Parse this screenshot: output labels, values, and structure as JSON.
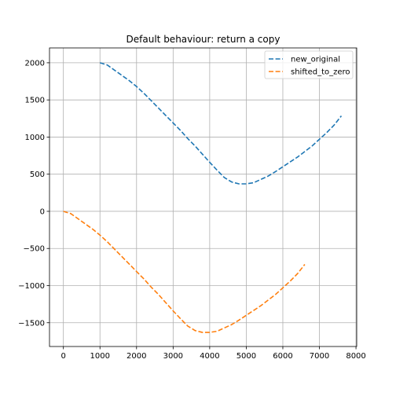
{
  "chart_data": {
    "type": "line",
    "title": "Default behaviour: return a copy",
    "xlabel": "",
    "ylabel": "",
    "xlim": [
      -380,
      8020
    ],
    "ylim": [
      -1820,
      2200
    ],
    "xticks": [
      0,
      1000,
      2000,
      3000,
      4000,
      5000,
      6000,
      7000,
      8000
    ],
    "yticks": [
      -1500,
      -1000,
      -500,
      0,
      500,
      1000,
      1500,
      2000
    ],
    "xtick_labels": [
      "0",
      "1000",
      "2000",
      "3000",
      "4000",
      "5000",
      "6000",
      "7000",
      "8000"
    ],
    "ytick_labels": [
      "−1500",
      "−1000",
      "−500",
      "0",
      "500",
      "1000",
      "1500",
      "2000"
    ],
    "grid": true,
    "legend_position": "top-right",
    "series": [
      {
        "name": "new_original",
        "color": "#1f77b4",
        "line_style": "dashed",
        "x": [
          1000,
          1200,
          1400,
          1600,
          1800,
          2000,
          2200,
          2400,
          2600,
          2800,
          3000,
          3200,
          3400,
          3600,
          3800,
          4000,
          4200,
          4400,
          4600,
          4800,
          5000,
          5200,
          5400,
          5600,
          5800,
          6000,
          6200,
          6400,
          6600,
          6800,
          7000,
          7200,
          7400,
          7600
        ],
        "y": [
          2000,
          1970,
          1900,
          1830,
          1760,
          1680,
          1590,
          1490,
          1390,
          1290,
          1190,
          1090,
          980,
          880,
          770,
          660,
          555,
          455,
          395,
          370,
          370,
          385,
          430,
          475,
          535,
          600,
          665,
          730,
          805,
          880,
          970,
          1060,
          1160,
          1285
        ]
      },
      {
        "name": "shifted_to_zero",
        "color": "#ff7f0e",
        "line_style": "dashed",
        "x": [
          0,
          200,
          400,
          600,
          800,
          1000,
          1200,
          1400,
          1600,
          1800,
          2000,
          2200,
          2400,
          2600,
          2800,
          3000,
          3200,
          3400,
          3600,
          3800,
          4000,
          4200,
          4400,
          4600,
          4800,
          5000,
          5200,
          5400,
          5600,
          5800,
          6000,
          6200,
          6400,
          6600
        ],
        "y": [
          0,
          -30,
          -100,
          -170,
          -240,
          -320,
          -410,
          -510,
          -610,
          -710,
          -810,
          -910,
          -1020,
          -1120,
          -1230,
          -1340,
          -1445,
          -1545,
          -1605,
          -1630,
          -1630,
          -1615,
          -1570,
          -1525,
          -1465,
          -1400,
          -1335,
          -1270,
          -1195,
          -1120,
          -1030,
          -940,
          -840,
          -715
        ]
      }
    ]
  }
}
